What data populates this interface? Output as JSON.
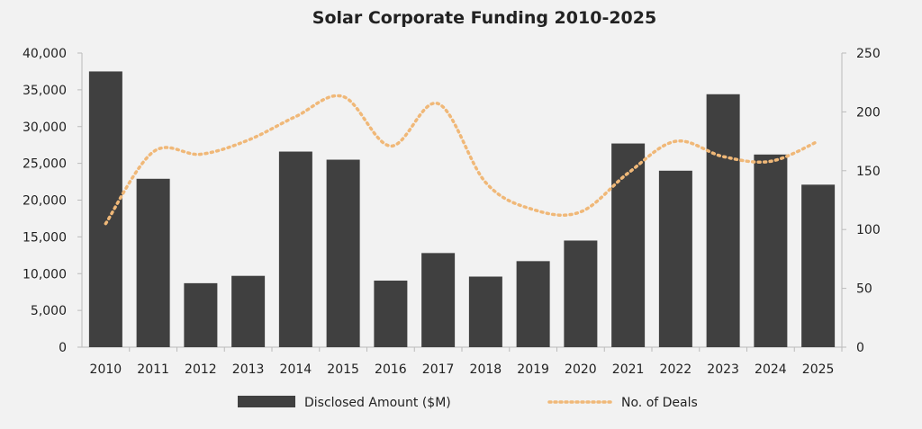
{
  "chart_data": {
    "type": "bar+line",
    "title": "Solar Corporate Funding 2010-2025",
    "categories": [
      "2010",
      "2011",
      "2012",
      "2013",
      "2014",
      "2015",
      "2016",
      "2017",
      "2018",
      "2019",
      "2020",
      "2021",
      "2022",
      "2023",
      "2024",
      "2025"
    ],
    "series": [
      {
        "name": "Disclosed Amount ($M)",
        "type": "bar",
        "axis": "left",
        "color": "#404040",
        "values": [
          37500,
          22900,
          8700,
          9700,
          26600,
          25500,
          9050,
          12800,
          9600,
          11700,
          14500,
          27700,
          24000,
          34400,
          26200,
          22100
        ]
      },
      {
        "name": "No. of Deals",
        "type": "line",
        "style": "dotted",
        "smooth": true,
        "axis": "right",
        "color": "#f0b878",
        "values": [
          105,
          166,
          164,
          176,
          196,
          213,
          171,
          207,
          140,
          117,
          115,
          148,
          175,
          162,
          158,
          175
        ]
      }
    ],
    "left_axis": {
      "min": 0,
      "max": 40000,
      "ticks": [
        "0",
        "5,000",
        "10,000",
        "15,000",
        "20,000",
        "25,000",
        "30,000",
        "35,000",
        "40,000"
      ]
    },
    "right_axis": {
      "min": 0,
      "max": 250,
      "ticks": [
        "0",
        "50",
        "100",
        "150",
        "200",
        "250"
      ]
    },
    "grid": false,
    "legend": "bottom"
  }
}
